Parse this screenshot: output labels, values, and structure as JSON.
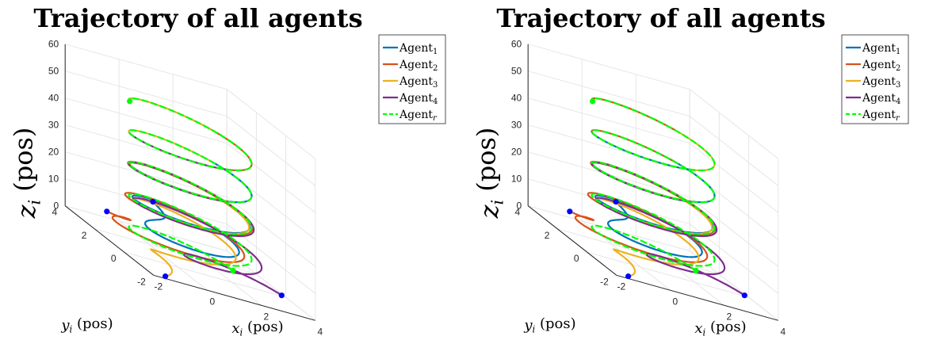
{
  "colors": {
    "agent1": "#0072BD",
    "agent2": "#D95319",
    "agent3": "#EDB120",
    "agent4": "#7E2F8E",
    "agentr": "#00FF00",
    "marker": "#0000FF"
  },
  "chart_data": [
    {
      "type": "line3d",
      "title": "Trajectory of all agents",
      "xlabel": "x_i (pos)",
      "ylabel": "y_i (pos)",
      "zlabel": "z_i (pos)",
      "xlabel_main": "x",
      "xlabel_sub": "i",
      "xlabel_unit": "(pos)",
      "ylabel_main": "y",
      "ylabel_sub": "i",
      "ylabel_unit": "(pos)",
      "zlabel_main": "z",
      "zlabel_sub": "i",
      "zlabel_unit": "(pos)",
      "xlim": [
        -2,
        4
      ],
      "ylim": [
        -2,
        4
      ],
      "zlim": [
        0,
        60
      ],
      "xticks": [
        "-2",
        "0",
        "2",
        "4"
      ],
      "yticks": [
        "-2",
        "0",
        "2",
        "4"
      ],
      "zticks": [
        "0",
        "10",
        "20",
        "30",
        "40",
        "50",
        "60"
      ],
      "grid": true,
      "legend_position": "top-right",
      "legend": [
        {
          "main": "Agent",
          "sub": "1",
          "style": "solid",
          "color_key": "agent1"
        },
        {
          "main": "Agent",
          "sub": "2",
          "style": "solid",
          "color_key": "agent2"
        },
        {
          "main": "Agent",
          "sub": "3",
          "style": "solid",
          "color_key": "agent3"
        },
        {
          "main": "Agent",
          "sub": "4",
          "style": "solid",
          "color_key": "agent4"
        },
        {
          "main": "Agent",
          "sub": "r",
          "style": "dashed",
          "color_key": "agentr"
        }
      ],
      "reference": {
        "center": [
          1,
          1
        ],
        "radius": 2,
        "z_start": 0,
        "z_end": 52,
        "turns": 4.4
      },
      "agents": [
        {
          "name": "Agent1",
          "start": [
            -0.6,
            0.6,
            20
          ],
          "color_key": "agent1"
        },
        {
          "name": "Agent2",
          "start": [
            -1.0,
            3.0,
            5
          ],
          "color_key": "agent2"
        },
        {
          "name": "Agent3",
          "start": [
            -1.4,
            -1.7,
            0
          ],
          "color_key": "agent3"
        },
        {
          "name": "Agent4",
          "start": [
            3.9,
            0.1,
            0
          ],
          "color_key": "agent4"
        }
      ],
      "upper_band_colors": [
        "agent1",
        "agent3",
        "agent4",
        "agent2",
        "agent3"
      ]
    },
    {
      "type": "line3d",
      "title": "Trajectory of all agents",
      "xlabel": "x_i (pos)",
      "ylabel": "y_i (pos)",
      "zlabel": "z_i (pos)",
      "xlabel_main": "x",
      "xlabel_sub": "i",
      "xlabel_unit": "(pos)",
      "ylabel_main": "y",
      "ylabel_sub": "i",
      "ylabel_unit": "(pos)",
      "zlabel_main": "z",
      "zlabel_sub": "i",
      "zlabel_unit": "(pos)",
      "xlim": [
        -2,
        4
      ],
      "ylim": [
        -2,
        4
      ],
      "zlim": [
        0,
        60
      ],
      "xticks": [
        "-2",
        "0",
        "2",
        "4"
      ],
      "yticks": [
        "-2",
        "0",
        "2",
        "4"
      ],
      "zticks": [
        "0",
        "10",
        "20",
        "30",
        "40",
        "50",
        "60"
      ],
      "grid": true,
      "legend_position": "top-right",
      "legend": [
        {
          "main": "Agent",
          "sub": "1",
          "style": "solid",
          "color_key": "agent1"
        },
        {
          "main": "Agent",
          "sub": "2",
          "style": "solid",
          "color_key": "agent2"
        },
        {
          "main": "Agent",
          "sub": "3",
          "style": "solid",
          "color_key": "agent3"
        },
        {
          "main": "Agent",
          "sub": "4",
          "style": "solid",
          "color_key": "agent4"
        },
        {
          "main": "Agent",
          "sub": "r",
          "style": "dashed",
          "color_key": "agentr"
        }
      ],
      "reference": {
        "center": [
          1,
          1
        ],
        "radius": 2,
        "z_start": 0,
        "z_end": 52,
        "turns": 4.4
      },
      "agents": [
        {
          "name": "Agent1",
          "start": [
            -0.6,
            0.6,
            20
          ],
          "color_key": "agent1"
        },
        {
          "name": "Agent2",
          "start": [
            -1.0,
            3.0,
            5
          ],
          "color_key": "agent2"
        },
        {
          "name": "Agent3",
          "start": [
            -1.4,
            -1.7,
            0
          ],
          "color_key": "agent3"
        },
        {
          "name": "Agent4",
          "start": [
            3.9,
            0.1,
            0
          ],
          "color_key": "agent4"
        }
      ],
      "upper_band_colors": [
        "agent1",
        "agent2",
        "agent1",
        "agent3",
        "agent2"
      ]
    }
  ]
}
